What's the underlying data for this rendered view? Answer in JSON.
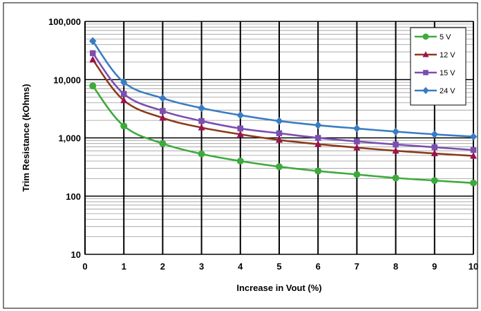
{
  "chart_data": {
    "type": "line",
    "xlabel": "Increase in Vout (%)",
    "ylabel": "Trim Resistance (kOhms)",
    "xlim": [
      0,
      10
    ],
    "ylim": [
      10,
      100000
    ],
    "yscale": "log",
    "x_ticks": [
      "0",
      "1",
      "2",
      "3",
      "4",
      "5",
      "6",
      "7",
      "8",
      "9",
      "10"
    ],
    "y_ticks": [
      "10",
      "100",
      "1,000",
      "10,000",
      "100,000"
    ],
    "grid": true,
    "legend_position": "top-right",
    "x": [
      0.2,
      1,
      2,
      3,
      4,
      5,
      6,
      7,
      8,
      9,
      10
    ],
    "series": [
      {
        "name": "5 V",
        "color": "#3daa3d",
        "marker": "circle",
        "values": [
          7800,
          1600,
          800,
          530,
          400,
          320,
          270,
          235,
          205,
          185,
          168
        ]
      },
      {
        "name": "12 V",
        "color": "#8b3a1a",
        "marker_color": "#a01050",
        "marker": "triangle",
        "values": [
          22000,
          4400,
          2200,
          1500,
          1150,
          920,
          780,
          680,
          600,
          540,
          490
        ]
      },
      {
        "name": "15 V",
        "color": "#7b4fb0",
        "marker": "square",
        "values": [
          28500,
          5700,
          2900,
          1950,
          1450,
          1200,
          1000,
          870,
          770,
          690,
          620
        ]
      },
      {
        "name": "24 V",
        "color": "#3a7cc2",
        "marker": "diamond",
        "values": [
          46000,
          9000,
          4800,
          3250,
          2450,
          1950,
          1650,
          1450,
          1280,
          1150,
          1050
        ]
      }
    ]
  }
}
